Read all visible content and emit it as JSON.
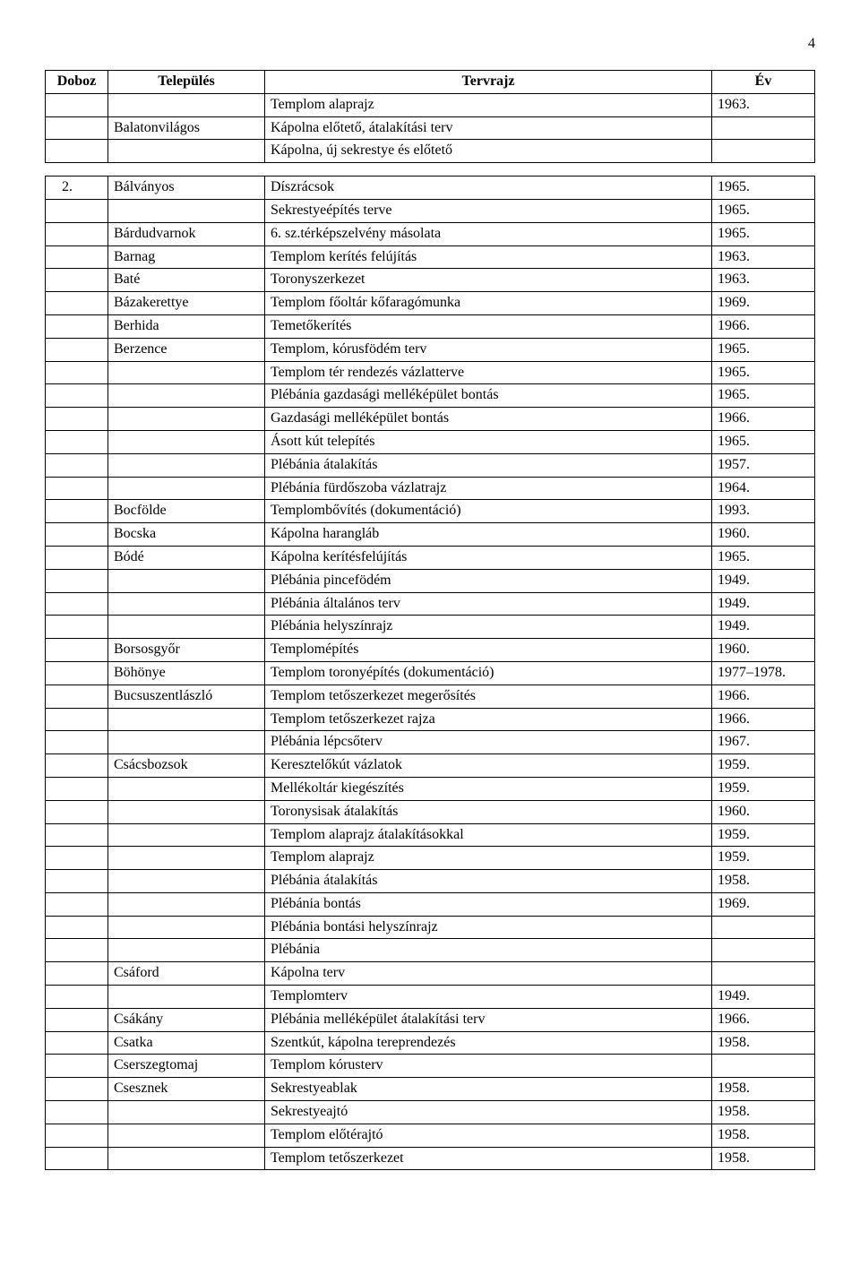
{
  "page_number": "4",
  "header_table": {
    "columns": [
      "Doboz",
      "Település",
      "Tervrajz",
      "Év"
    ],
    "rows": [
      [
        "",
        "",
        "Templom alaprajz",
        "1963."
      ],
      [
        "",
        "Balatonvilágos",
        "Kápolna előtető, átalakítási terv",
        ""
      ],
      [
        "",
        "",
        "Kápolna, új sekrestye és előtető",
        ""
      ]
    ]
  },
  "main_table": {
    "rows": [
      [
        "2.",
        "Bálványos",
        "Díszrácsok",
        "1965."
      ],
      [
        "",
        "",
        "Sekrestyeépítés terve",
        "1965."
      ],
      [
        "",
        "Bárdudvarnok",
        "6. sz.térképszelvény másolata",
        "1965."
      ],
      [
        "",
        "Barnag",
        "Templom kerítés felújítás",
        "1963."
      ],
      [
        "",
        "Baté",
        "Toronyszerkezet",
        "1963."
      ],
      [
        "",
        "Bázakerettye",
        "Templom főoltár kőfaragómunka",
        "1969."
      ],
      [
        "",
        "Berhida",
        "Temetőkerítés",
        "1966."
      ],
      [
        "",
        "Berzence",
        "Templom, kórusfödém terv",
        "1965."
      ],
      [
        "",
        "",
        "Templom tér rendezés vázlatterve",
        "1965."
      ],
      [
        "",
        "",
        "Plébánia gazdasági melléképület bontás",
        "1965."
      ],
      [
        "",
        "",
        "Gazdasági melléképület bontás",
        "1966."
      ],
      [
        "",
        "",
        "Ásott kút telepítés",
        "1965."
      ],
      [
        "",
        "",
        "Plébánia átalakítás",
        "1957."
      ],
      [
        "",
        "",
        "Plébánia fürdőszoba vázlatrajz",
        "1964."
      ],
      [
        "",
        "Bocfölde",
        "Templombővítés (dokumentáció)",
        "1993."
      ],
      [
        "",
        "Bocska",
        "Kápolna harangláb",
        "1960."
      ],
      [
        "",
        "Bódé",
        "Kápolna kerítésfelújítás",
        "1965."
      ],
      [
        "",
        "",
        "Plébánia pincefödém",
        "1949."
      ],
      [
        "",
        "",
        "Plébánia általános terv",
        "1949."
      ],
      [
        "",
        "",
        "Plébánia helyszínrajz",
        "1949."
      ],
      [
        "",
        "Borsosgyőr",
        "Templomépítés",
        "1960."
      ],
      [
        "",
        "Böhönye",
        "Templom toronyépítés (dokumentáció)",
        "1977–1978."
      ],
      [
        "",
        "Bucsuszentlászló",
        "Templom tetőszerkezet megerősítés",
        "1966."
      ],
      [
        "",
        "",
        "Templom tetőszerkezet rajza",
        "1966."
      ],
      [
        "",
        "",
        "Plébánia lépcsőterv",
        "1967."
      ],
      [
        "",
        "Csácsbozsok",
        "Keresztelőkút vázlatok",
        "1959."
      ],
      [
        "",
        "",
        "Mellékoltár kiegészítés",
        "1959."
      ],
      [
        "",
        "",
        "Toronysisak átalakítás",
        "1960."
      ],
      [
        "",
        "",
        "Templom alaprajz átalakításokkal",
        "1959."
      ],
      [
        "",
        "",
        "Templom alaprajz",
        "1959."
      ],
      [
        "",
        "",
        "Plébánia átalakítás",
        "1958."
      ],
      [
        "",
        "",
        "Plébánia bontás",
        "1969."
      ],
      [
        "",
        "",
        "Plébánia bontási helyszínrajz",
        ""
      ],
      [
        "",
        "",
        "Plébánia",
        ""
      ],
      [
        "",
        "Csáford",
        "Kápolna terv",
        ""
      ],
      [
        "",
        "",
        "Templomterv",
        "1949."
      ],
      [
        "",
        "Csákány",
        "Plébánia melléképület átalakítási terv",
        "1966."
      ],
      [
        "",
        "Csatka",
        "Szentkút, kápolna tereprendezés",
        "1958."
      ],
      [
        "",
        "Cserszegtomaj",
        "Templom kórusterv",
        ""
      ],
      [
        "",
        "Csesznek",
        "Sekrestyeablak",
        "1958."
      ],
      [
        "",
        "",
        "Sekrestyeajtó",
        "1958."
      ],
      [
        "",
        "",
        "Templom előtérajtó",
        "1958."
      ],
      [
        "",
        "",
        "Templom tetőszerkezet",
        "1958."
      ]
    ]
  }
}
